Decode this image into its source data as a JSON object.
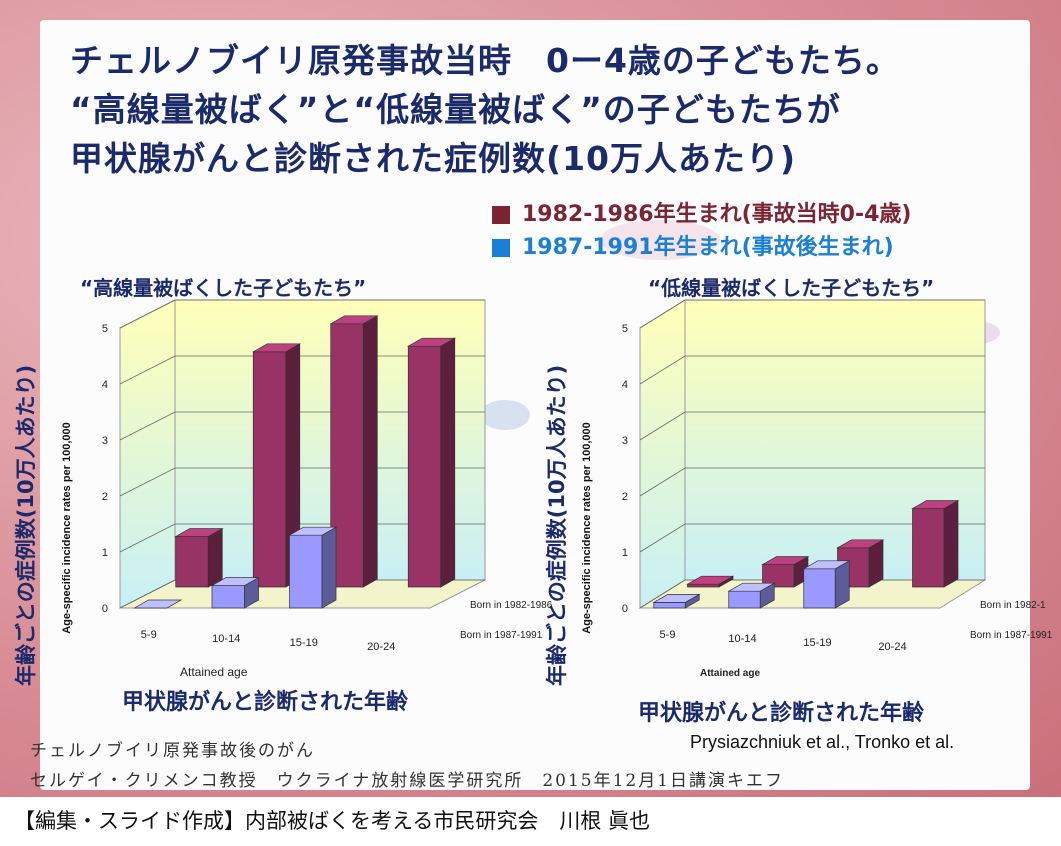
{
  "title": {
    "line1": "チェルノブイリ原発事故当時　0ー4歳の子どもたち。",
    "line2": "“高線量被ばく”と“低線量被ばく”の子どもたちが",
    "line3": "甲状腺がんと診断された症例数(10万人あたり)"
  },
  "legend": [
    {
      "label": "1982-1986年生まれ(事故当時0-4歳)",
      "color": "#7b2433"
    },
    {
      "label": "1987-1991年生まれ(事故後生まれ)",
      "color": "#1a7fd6"
    }
  ],
  "y_label_jp": "年齢ごとの症例数(10万人あたり)",
  "x_label_jp": "甲状腺がんと診断された年齢",
  "colors": {
    "series1": "#993366",
    "series2": "#9999ff",
    "title": "#1b2a6b"
  },
  "chart_data": [
    {
      "type": "bar",
      "title": "“高線量被ばくした子どもたち”",
      "categories": [
        "5-9",
        "10-14",
        "15-19",
        "20-24"
      ],
      "series": [
        {
          "name": "Born in 1982-1986",
          "values": [
            0.9,
            4.2,
            4.7,
            4.3
          ]
        },
        {
          "name": "Born in 1987-1991",
          "values": [
            0.0,
            0.4,
            1.3,
            null
          ]
        }
      ],
      "ylabel": "Age-specific incidence rates per 100,000",
      "xlabel": "Attained age",
      "yticks": [
        "0",
        "1",
        "2",
        "3",
        "4",
        "5"
      ],
      "ylim": [
        0,
        5
      ]
    },
    {
      "type": "bar",
      "title": "“低線量被ばくした子どもたち”",
      "categories": [
        "5-9",
        "10-14",
        "15-19",
        "20-24"
      ],
      "series": [
        {
          "name": "Born in 1982-1",
          "values": [
            0.05,
            0.4,
            0.7,
            1.4
          ]
        },
        {
          "name": "Born in 1987-1991",
          "values": [
            0.1,
            0.3,
            0.7,
            null
          ]
        }
      ],
      "ylabel": "Age-specific incidence rates per 100,000",
      "xlabel": "Attained age",
      "yticks": [
        "0",
        "1",
        "2",
        "3",
        "4",
        "5"
      ],
      "ylim": [
        0,
        5
      ]
    }
  ],
  "footer": {
    "line1": "チェルノブイリ原発事故後のがん",
    "line2": "セルゲイ・クリメンコ教授　ウクライナ放射線医学研究所　2015年12月1日講演キエフ",
    "citation": "Prysiazchniuk et al., Tronko et al.",
    "credit": "【編集・スライド作成】内部被ばくを考える市民研究会　川根 眞也"
  }
}
